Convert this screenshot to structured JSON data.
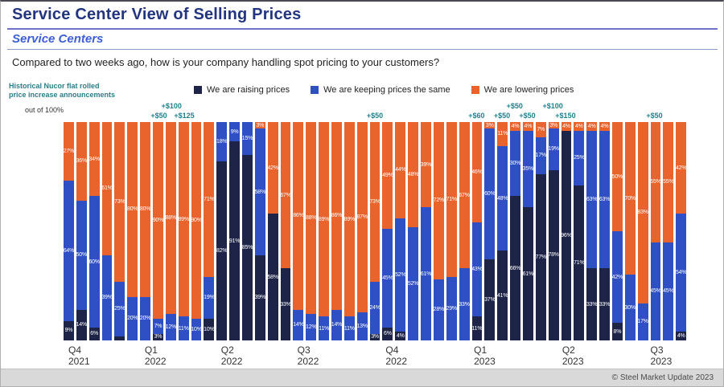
{
  "header": {
    "title": "Service Center View of Selling Prices",
    "subtitle": "Service Centers",
    "question": "Compared to two weeks ago, how is your company handling spot pricing to your customers?"
  },
  "note": {
    "line1": "Historical Nucor flat rolled",
    "line2": "price increase announcements",
    "scale": "out of 100%"
  },
  "footer": {
    "copyright": "© Steel Market Update 2023"
  },
  "chart_data": {
    "type": "bar",
    "subtype": "stacked-100-percent",
    "ylim": [
      0,
      100
    ],
    "label_min_value": 3,
    "series": [
      {
        "key": "raise",
        "name": "We are raising prices",
        "color": "#1e2448"
      },
      {
        "key": "same",
        "name": "We are keeping prices the same",
        "color": "#2f4fc5"
      },
      {
        "key": "lower",
        "name": "We are lowering prices",
        "color": "#e9632d"
      }
    ],
    "stack_order_top_to_bottom": [
      "lower",
      "same",
      "raise"
    ],
    "bar_value_order": [
      "raise",
      "same",
      "lower"
    ],
    "groups": [
      {
        "label": "Q4 2021",
        "bars": [
          [
            9,
            64,
            27
          ],
          [
            14,
            50,
            36
          ],
          [
            6,
            60,
            34
          ],
          [
            0,
            39,
            61
          ],
          [
            2,
            25,
            73
          ],
          [
            0,
            20,
            80
          ]
        ]
      },
      {
        "label": "Q1 2022",
        "bars": [
          [
            0,
            20,
            80
          ],
          [
            3,
            7,
            90
          ],
          [
            0,
            12,
            88
          ],
          [
            0,
            11,
            89
          ],
          [
            0,
            10,
            90
          ],
          [
            10,
            19,
            71
          ]
        ]
      },
      {
        "label": "Q2 2022",
        "bars": [
          [
            82,
            18,
            0
          ],
          [
            91,
            9,
            0
          ],
          [
            85,
            15,
            0
          ],
          [
            39,
            58,
            3
          ],
          [
            58,
            0,
            42
          ],
          [
            33,
            0,
            67
          ]
        ]
      },
      {
        "label": "Q3 2022",
        "bars": [
          [
            0,
            14,
            86
          ],
          [
            0,
            12,
            88
          ],
          [
            0,
            11,
            89
          ],
          [
            0,
            14,
            86
          ],
          [
            0,
            11,
            89
          ],
          [
            0,
            13,
            87
          ],
          [
            3,
            24,
            73
          ]
        ]
      },
      {
        "label": "Q4 2022",
        "bars": [
          [
            6,
            45,
            49
          ],
          [
            4,
            52,
            44
          ],
          [
            0,
            52,
            48
          ],
          [
            0,
            61,
            39
          ],
          [
            0,
            28,
            72
          ],
          [
            0,
            29,
            71
          ],
          [
            0,
            33,
            67
          ]
        ]
      },
      {
        "label": "Q1 2023",
        "bars": [
          [
            11,
            43,
            46
          ],
          [
            37,
            60,
            3
          ],
          [
            41,
            48,
            11
          ],
          [
            66,
            30,
            4
          ],
          [
            61,
            35,
            4
          ],
          [
            77,
            17,
            7
          ],
          [
            78,
            19,
            3
          ]
        ]
      },
      {
        "label": "Q2 2023",
        "bars": [
          [
            96,
            0,
            4
          ],
          [
            71,
            25,
            4
          ],
          [
            33,
            63,
            4
          ],
          [
            33,
            63,
            4
          ],
          [
            8,
            42,
            50
          ],
          [
            0,
            30,
            70
          ],
          [
            0,
            17,
            83
          ]
        ]
      },
      {
        "label": "Q3 2023",
        "bars": [
          [
            0,
            45,
            55
          ],
          [
            0,
            45,
            55
          ],
          [
            4,
            54,
            42
          ]
        ]
      }
    ],
    "annotations": [
      {
        "bar": 8,
        "row": 2,
        "text": "+$50"
      },
      {
        "bar": 9,
        "row": 1,
        "text": "+$100"
      },
      {
        "bar": 10,
        "row": 2,
        "text": "+$125"
      },
      {
        "bar": 25,
        "row": 2,
        "text": "+$50"
      },
      {
        "bar": 33,
        "row": 2,
        "text": "+$60"
      },
      {
        "bar": 35,
        "row": 2,
        "text": "+$50"
      },
      {
        "bar": 36,
        "row": 1,
        "text": "+$50"
      },
      {
        "bar": 37,
        "row": 2,
        "text": "+$50"
      },
      {
        "bar": 39,
        "row": 1,
        "text": "+$100"
      },
      {
        "bar": 40,
        "row": 2,
        "text": "+$150"
      },
      {
        "bar": 47,
        "row": 2,
        "text": "+$50"
      }
    ]
  }
}
